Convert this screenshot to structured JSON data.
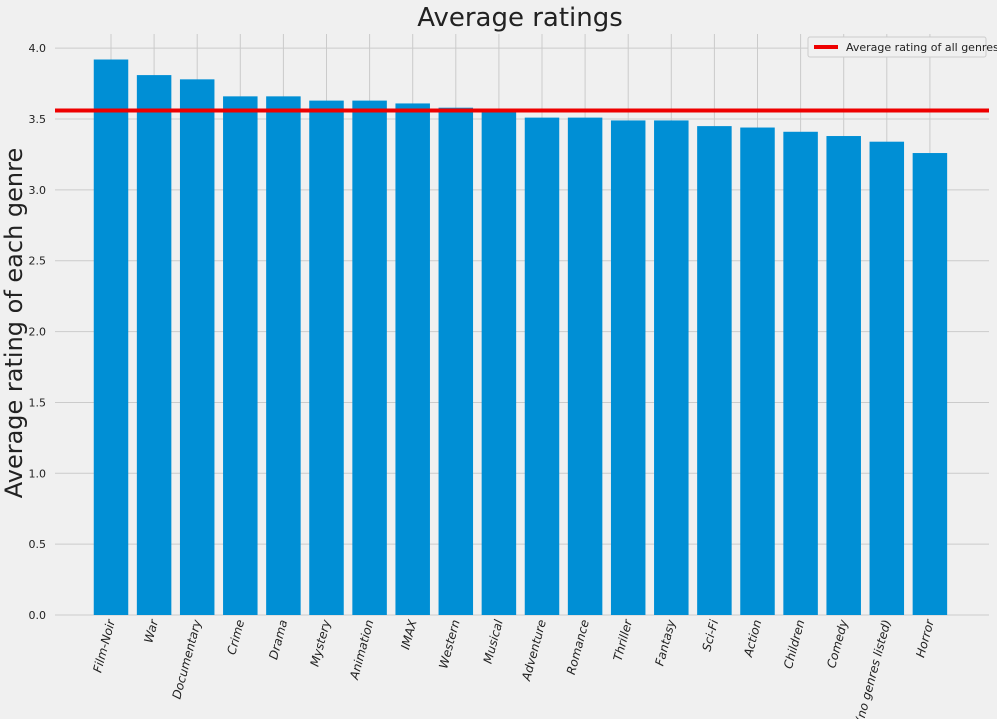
{
  "chart_data": {
    "type": "bar",
    "title": "Average ratings",
    "xlabel": "",
    "ylabel": "Average rating of each genre",
    "ylim": [
      0,
      4.1
    ],
    "yticks": [
      0.0,
      0.5,
      1.0,
      1.5,
      2.0,
      2.5,
      3.0,
      3.5,
      4.0
    ],
    "ytick_labels": [
      "0.0",
      "0.5",
      "1.0",
      "1.5",
      "2.0",
      "2.5",
      "3.0",
      "3.5",
      "4.0"
    ],
    "grid": true,
    "categories": [
      "Film-Noir",
      "War",
      "Documentary",
      "Crime",
      "Drama",
      "Mystery",
      "Animation",
      "IMAX",
      "Western",
      "Musical",
      "Adventure",
      "Romance",
      "Thriller",
      "Fantasy",
      "Sci-Fi",
      "Action",
      "Children",
      "Comedy",
      "(no genres listed)",
      "Horror"
    ],
    "values": [
      3.92,
      3.81,
      3.78,
      3.66,
      3.66,
      3.63,
      3.63,
      3.61,
      3.58,
      3.56,
      3.51,
      3.51,
      3.49,
      3.49,
      3.45,
      3.44,
      3.41,
      3.38,
      3.34,
      3.26
    ],
    "bar_color": "#008fd5",
    "reference_line": {
      "label": "Average rating of all genres",
      "value": 3.56,
      "color": "#ee0000"
    },
    "legend_position": "top-right"
  }
}
